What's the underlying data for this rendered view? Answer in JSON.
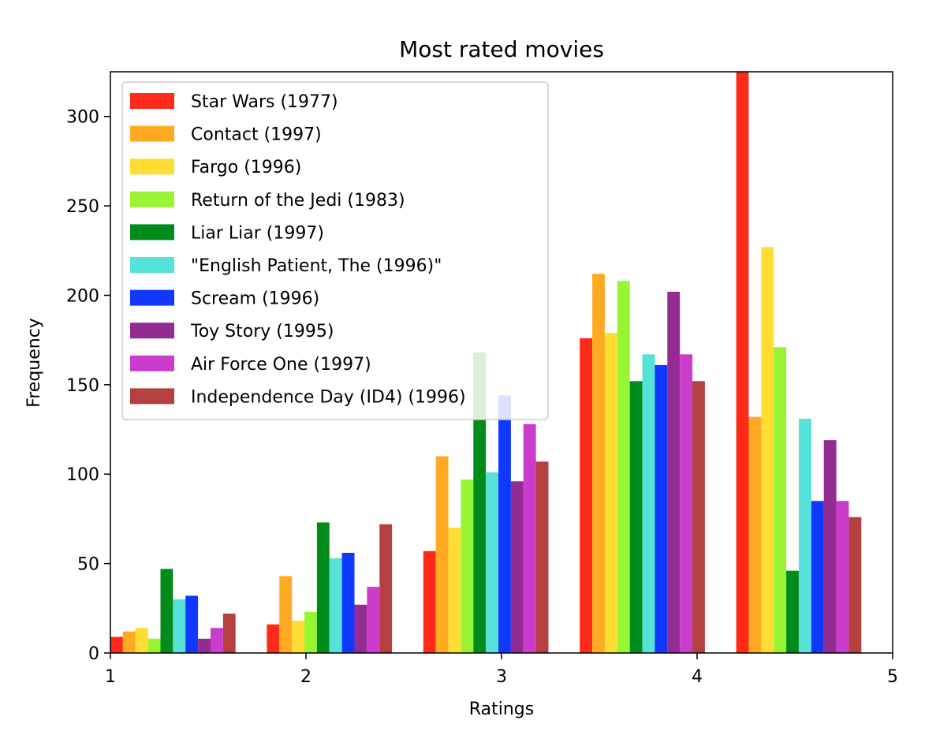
{
  "chart_data": {
    "type": "bar",
    "title": "Most rated movies",
    "xlabel": "Ratings",
    "ylabel": "Frequency",
    "xlim": [
      1,
      5
    ],
    "ylim": [
      0,
      325
    ],
    "xticks": [
      "1",
      "2",
      "3",
      "4",
      "5"
    ],
    "yticks": [
      "0",
      "50",
      "100",
      "150",
      "200",
      "250",
      "300"
    ],
    "xtick_values": [
      1,
      2,
      3,
      4,
      5
    ],
    "ytick_values": [
      0,
      50,
      100,
      150,
      200,
      250,
      300
    ],
    "categories": [
      1,
      2,
      3,
      4,
      5
    ],
    "grid": false,
    "legend_position": "top-left",
    "series": [
      {
        "name": "Star Wars (1977)",
        "color": "#ff2a1a",
        "values": [
          9,
          16,
          57,
          176,
          325
        ]
      },
      {
        "name": "Contact (1997)",
        "color": "#ffaa22",
        "values": [
          12,
          43,
          110,
          212,
          132
        ]
      },
      {
        "name": "Fargo (1996)",
        "color": "#ffdd33",
        "values": [
          14,
          18,
          70,
          179,
          227
        ]
      },
      {
        "name": "Return of the Jedi (1983)",
        "color": "#99f533",
        "values": [
          8,
          23,
          97,
          208,
          171
        ]
      },
      {
        "name": "Liar Liar (1997)",
        "color": "#008c1a",
        "values": [
          47,
          73,
          168,
          152,
          46
        ]
      },
      {
        "name": "\"English Patient, The (1996)\"",
        "color": "#55e2d8",
        "values": [
          30,
          53,
          101,
          167,
          131
        ]
      },
      {
        "name": "Scream (1996)",
        "color": "#1038ff",
        "values": [
          32,
          56,
          144,
          161,
          85
        ]
      },
      {
        "name": "Toy Story (1995)",
        "color": "#922b92",
        "values": [
          8,
          27,
          96,
          202,
          119
        ]
      },
      {
        "name": "Air Force One (1997)",
        "color": "#cc3ccc",
        "values": [
          14,
          37,
          128,
          167,
          85
        ]
      },
      {
        "name": "Independence Day (ID4) (1996)",
        "color": "#b44040",
        "values": [
          22,
          72,
          107,
          152,
          76
        ]
      }
    ]
  }
}
